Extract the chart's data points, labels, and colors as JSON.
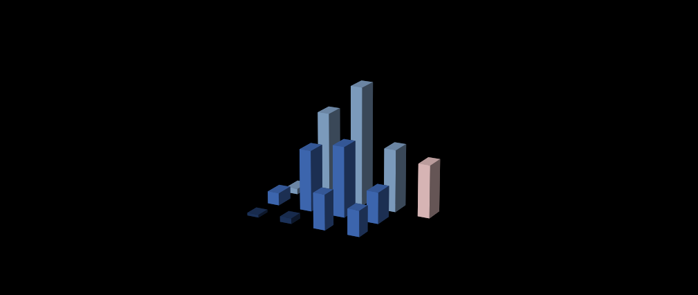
{
  "colors": {
    "light_blue": "#8BAED4",
    "mid_blue": "#4472C4",
    "dark_navy": "#1F3864",
    "dark_red": "#9B2335",
    "light_pink": "#F2CCCC",
    "background": "#000000",
    "grid_line": "#888888"
  },
  "figsize": [
    10.09,
    4.27
  ],
  "dpi": 100,
  "group_positions": [
    0,
    2.2,
    4.4,
    6.6,
    8.8
  ],
  "bar_heights_back": [
    0.4,
    6.5,
    8.8,
    4.6,
    3.9
  ],
  "bar_heights_front": [
    0.9,
    4.5,
    5.2,
    2.3,
    0.0
  ],
  "bar_heights_tiny": [
    0.2,
    0.4,
    2.6,
    1.9,
    0.0
  ],
  "back_colors": [
    "#8BAED4",
    "#8BAED4",
    "#8BAED4",
    "#8BAED4",
    "#F2CCCC"
  ],
  "front_colors": [
    "#4472C4",
    "#4472C4",
    "#4472C4",
    "#4472C4",
    "#9B2335"
  ],
  "tiny_colors": [
    "#1F3864",
    "#1F3864",
    "#4472C4",
    "#4472C4",
    "#1F3864"
  ],
  "bar_width": 0.75,
  "bar_depth": 0.55,
  "zlim": [
    0,
    10
  ],
  "elev": 18,
  "azim": -62
}
